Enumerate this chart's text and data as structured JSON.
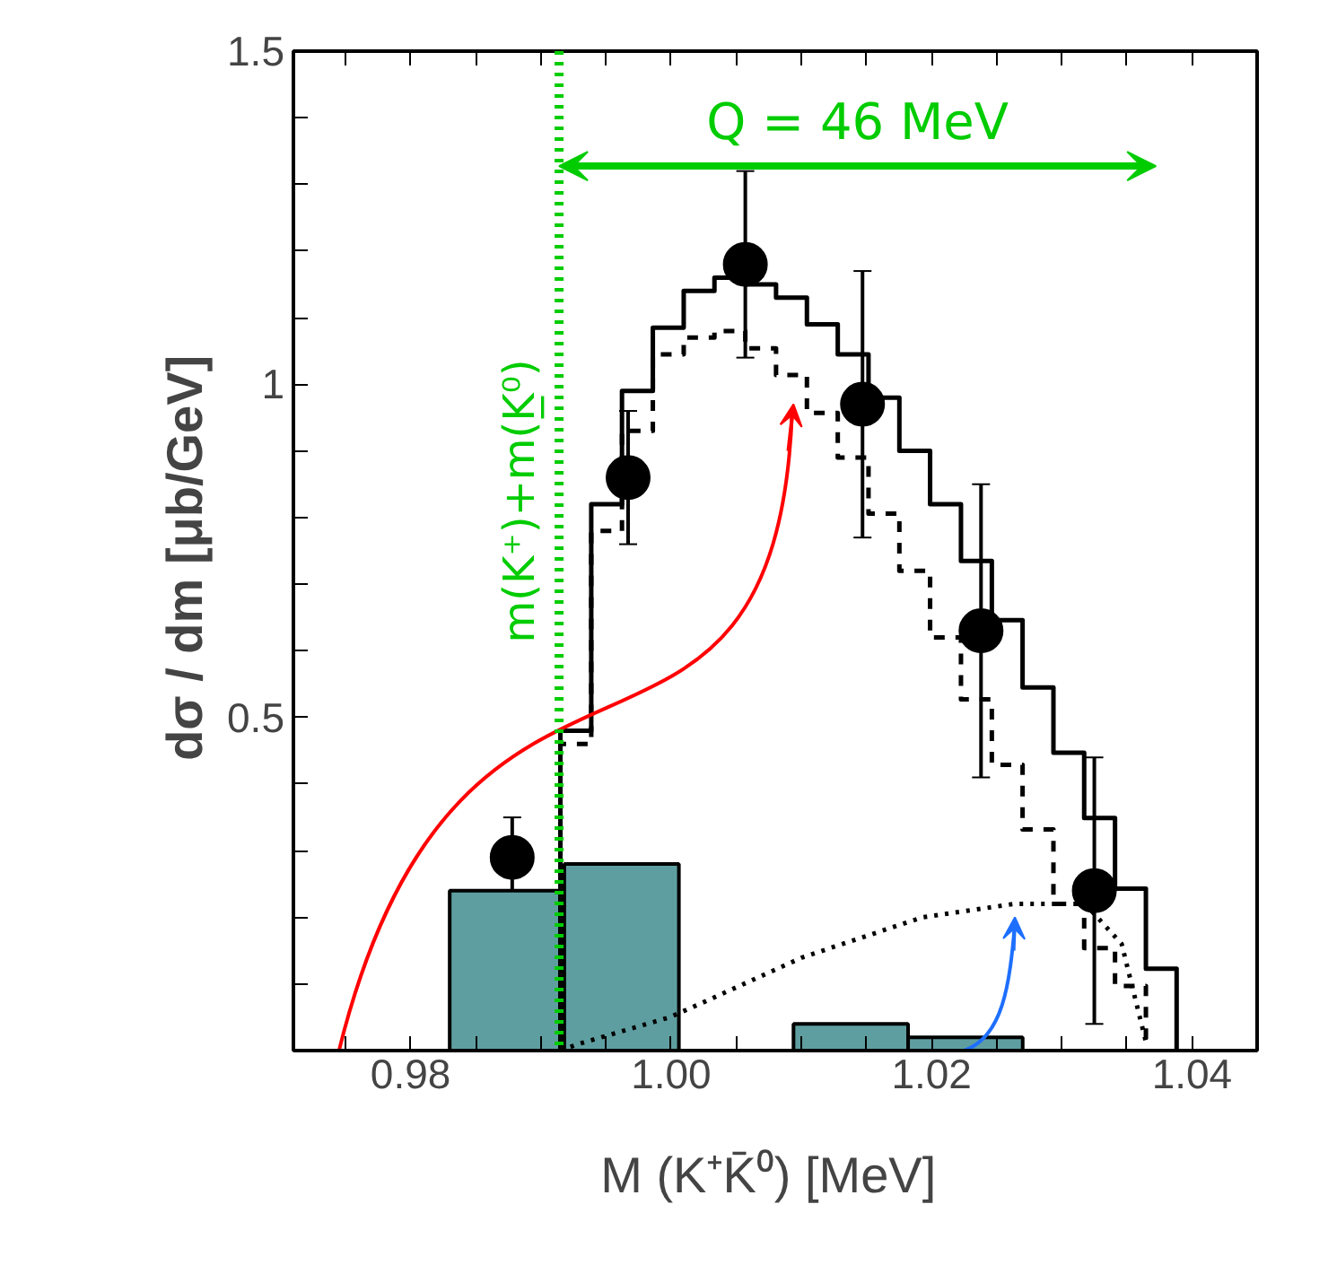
{
  "chart_data": {
    "type": "histogram",
    "xlabel": "M (K⁺K̄⁰)  [MeV]",
    "ylabel": "dσ / dm  [μb/GeV]",
    "xlim": [
      0.971,
      1.045
    ],
    "ylim": [
      0,
      1.5
    ],
    "xticks": [
      {
        "value": 0.975,
        "label": null
      },
      {
        "value": 0.98,
        "label": "0.98"
      },
      {
        "value": 0.985,
        "label": null
      },
      {
        "value": 0.99,
        "label": null
      },
      {
        "value": 0.995,
        "label": null
      },
      {
        "value": 1.0,
        "label": "1.00"
      },
      {
        "value": 1.005,
        "label": null
      },
      {
        "value": 1.01,
        "label": null
      },
      {
        "value": 1.015,
        "label": null
      },
      {
        "value": 1.02,
        "label": "1.02"
      },
      {
        "value": 1.025,
        "label": null
      },
      {
        "value": 1.03,
        "label": null
      },
      {
        "value": 1.035,
        "label": null
      },
      {
        "value": 1.04,
        "label": "1.04"
      }
    ],
    "yticks": [
      {
        "value": 0.1,
        "label": null
      },
      {
        "value": 0.2,
        "label": null
      },
      {
        "value": 0.3,
        "label": null
      },
      {
        "value": 0.4,
        "label": null
      },
      0.5,
      {
        "value": 0.6,
        "label": null
      },
      {
        "value": 0.7,
        "label": null
      },
      {
        "value": 0.8,
        "label": null
      },
      {
        "value": 0.9,
        "label": null
      },
      1,
      {
        "value": 1.1,
        "label": null
      },
      {
        "value": 1.2,
        "label": null
      },
      {
        "value": 1.3,
        "label": null
      },
      {
        "value": 1.4,
        "label": null
      },
      1.5
    ],
    "grid": false,
    "series": [
      {
        "color": "#5f9ea0",
        "bins": [
          0.983,
          0.9918,
          1.0006,
          1.0094,
          1.0182,
          1.027
        ],
        "values": [
          0.24,
          0.28,
          null,
          0.04,
          0.02
        ]
      },
      {
        "type": "step",
        "color": "#000000",
        "line_style": "solid",
        "x": [
          0.9915,
          0.9915,
          0.99387,
          0.99623,
          0.9986,
          1.00097,
          1.00333,
          1.0057,
          1.00806,
          1.01043,
          1.0128,
          1.01516,
          1.01753,
          1.01989,
          1.02226,
          1.02463,
          1.02699,
          1.02936,
          1.03172,
          1.03409,
          1.03646,
          1.03882
        ],
        "values": [
          0,
          0.48,
          0.82,
          0.99,
          1.085,
          1.14,
          1.16,
          1.15,
          1.13,
          1.09,
          1.045,
          0.98,
          0.9,
          0.82,
          0.735,
          0.646,
          0.545,
          0.447,
          0.349,
          0.243,
          0.123,
          0
        ]
      },
      {
        "type": "step",
        "color": "#000000",
        "line_style": "dashed",
        "x": [
          0.9915,
          0.9915,
          0.99387,
          0.99623,
          0.9986,
          1.00097,
          1.00333,
          1.0057,
          1.00806,
          1.01043,
          1.0128,
          1.01516,
          1.01753,
          1.01989,
          1.02226,
          1.02463,
          1.02699,
          1.02936,
          1.03172,
          1.03409,
          1.03646
        ],
        "values": [
          0,
          0.46,
          0.78,
          0.93,
          1.045,
          1.07,
          1.08,
          1.054,
          1.014,
          0.957,
          0.89,
          0.806,
          0.72,
          0.62,
          0.527,
          0.429,
          0.332,
          0.22,
          0.154,
          0.097,
          0
        ]
      },
      {
        "type": "line",
        "color": "#000000",
        "line_style": "dotted",
        "x": [
          0.9915,
          0.9929,
          0.9999,
          1.0022,
          1.0101,
          1.0193,
          1.0263,
          1.0318,
          1.0346,
          1.0365
        ],
        "values": [
          0,
          0.01,
          0.05,
          0.07,
          0.14,
          0.2,
          0.22,
          0.22,
          0.16,
          0.01
        ]
      },
      {
        "type": "scatter",
        "color": "#000000",
        "marker": "circle",
        "x": [
          0.9878,
          0.9967,
          1.0057,
          1.0147,
          1.0238,
          1.0325
        ],
        "values": [
          0.29,
          0.86,
          1.18,
          0.97,
          0.63,
          0.24
        ],
        "errors": [
          0.06,
          0.1,
          0.14,
          0.2,
          0.22,
          0.2
        ]
      }
    ],
    "ref_lines": [
      {
        "axis": "x",
        "value": 0.9914,
        "label": "m(K⁺)+m(K̲⁰)",
        "color": "#00cc00",
        "line_style": "dotted"
      }
    ],
    "annotations": [
      "Q = 46 MeV"
    ]
  }
}
